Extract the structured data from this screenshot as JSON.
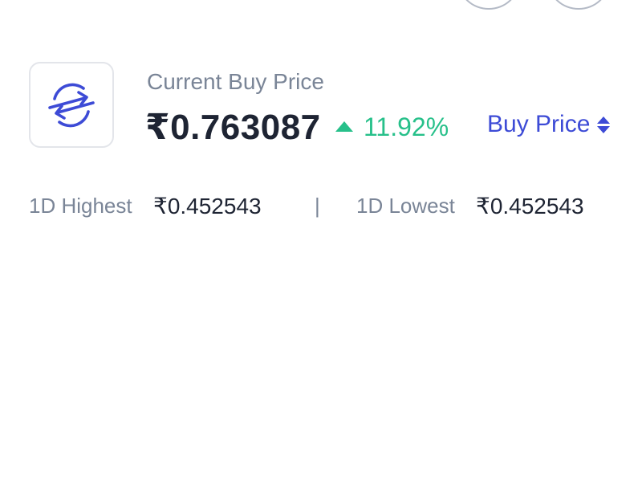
{
  "header": {
    "buttons": [
      "",
      ""
    ]
  },
  "asset": {
    "icon": "exchange-arrows-icon",
    "icon_color": "#3d4bd6",
    "current_label": "Current Buy Price",
    "price": "₹0.763087",
    "change": "11.92%",
    "change_direction": "up",
    "change_color": "#27c08a",
    "price_type_label": "Buy Price"
  },
  "stats": {
    "high_label": "1D Highest",
    "high_value": "₹0.452543",
    "divider": "|",
    "low_label": "1D Lowest",
    "low_value": "₹0.452543"
  }
}
